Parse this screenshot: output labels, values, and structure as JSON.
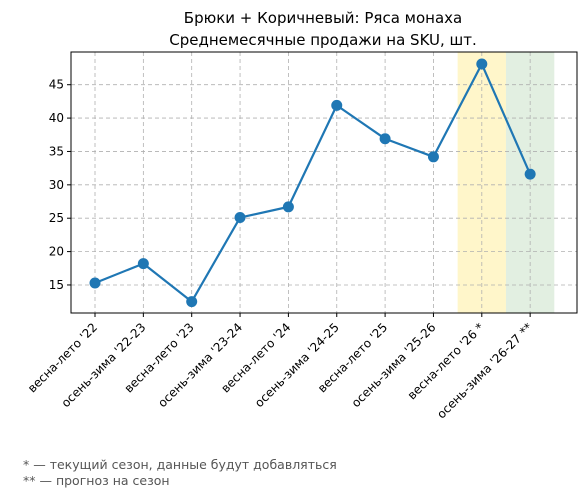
{
  "chart_data": {
    "type": "line",
    "title": "Брюки + Коричневый: Ряса монаха",
    "subtitle": "Среднемесячные продажи на SKU, шт.",
    "xlabel": "",
    "ylabel": "",
    "categories": [
      "весна-лето '22",
      "осень-зима '22-23",
      "весна-лето '23",
      "осень-зима '23-24",
      "весна-лето '24",
      "осень-зима '24-25",
      "весна-лето '25",
      "осень-зима '25-26",
      "весна-лето '26 *",
      "осень-зима '26-27 **"
    ],
    "series": [
      {
        "values": [
          15.3,
          18.2,
          12.5,
          25.1,
          26.7,
          41.9,
          36.9,
          34.2,
          48.1,
          31.6
        ]
      }
    ],
    "ylim": [
      10.8,
      49.9
    ],
    "yticks": [
      15,
      20,
      25,
      30,
      35,
      40,
      45
    ],
    "grid": true,
    "line_color": "#1f77b4",
    "highlights": [
      {
        "category": "весна-лето '26 *",
        "color": "#fff2b3"
      },
      {
        "category": "осень-зима '26-27 **",
        "color": "#d5e8d4"
      }
    ]
  },
  "footnotes": {
    "current": "* — текущий сезон, данные будут добавляться",
    "forecast": "** — прогноз на сезон"
  }
}
